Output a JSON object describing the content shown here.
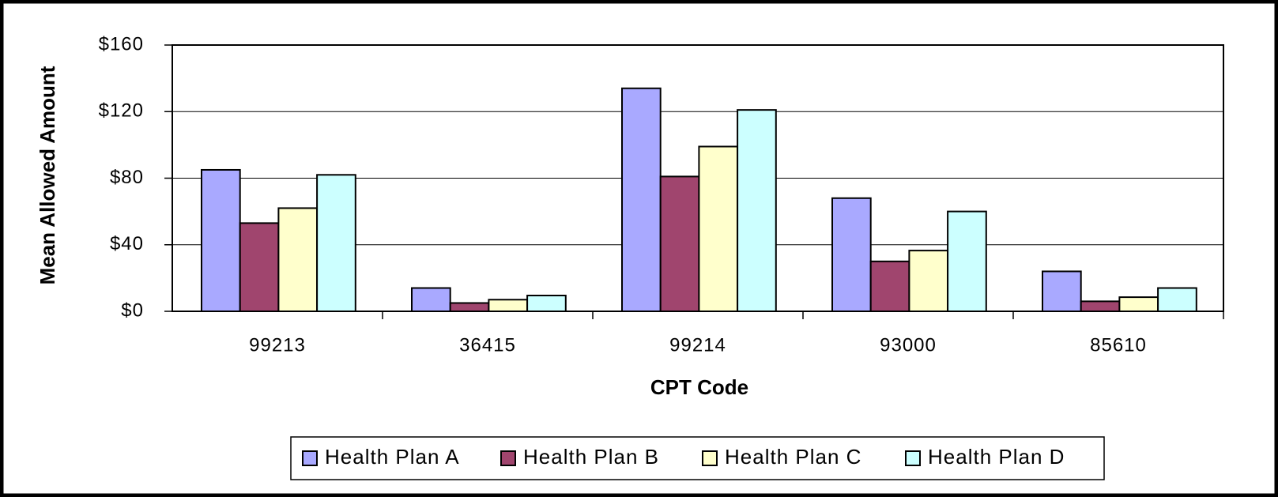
{
  "chart_data": {
    "type": "bar",
    "x_label": "CPT Code",
    "y_label": "Mean Allowed Amount",
    "categories": [
      "99213",
      "36415",
      "99214",
      "93000",
      "85610"
    ],
    "series": [
      {
        "name": "Health Plan A",
        "color": "#a9a9ff",
        "values": [
          85,
          14,
          134,
          68,
          24
        ]
      },
      {
        "name": "Health Plan B",
        "color": "#a0456e",
        "values": [
          53,
          5,
          81,
          30,
          6
        ]
      },
      {
        "name": "Health Plan C",
        "color": "#ffffcc",
        "values": [
          62,
          7,
          99,
          36.5,
          8.5
        ]
      },
      {
        "name": "Health Plan D",
        "color": "#ccffff",
        "values": [
          82,
          9.5,
          121,
          60,
          14
        ]
      }
    ],
    "ylim": [
      0,
      160
    ],
    "yticks": [
      {
        "value": 0,
        "label": "$0"
      },
      {
        "value": 40,
        "label": "$40"
      },
      {
        "value": 80,
        "label": "$80"
      },
      {
        "value": 120,
        "label": "$120"
      },
      {
        "value": 160,
        "label": "$160"
      }
    ],
    "grid": true
  }
}
